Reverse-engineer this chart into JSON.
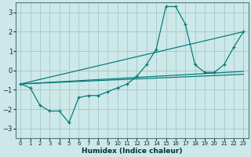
{
  "xlabel": "Humidex (Indice chaleur)",
  "bg_color": "#cce8e8",
  "grid_color": "#aacccc",
  "line_color": "#007777",
  "xlim": [
    -0.5,
    23.5
  ],
  "ylim": [
    -3.5,
    3.5
  ],
  "yticks": [
    -3,
    -2,
    -1,
    0,
    1,
    2,
    3
  ],
  "xticks": [
    0,
    1,
    2,
    3,
    4,
    5,
    6,
    7,
    8,
    9,
    10,
    11,
    12,
    13,
    14,
    15,
    16,
    17,
    18,
    19,
    20,
    21,
    22,
    23
  ],
  "wiggly_x": [
    0,
    1,
    2,
    3,
    4,
    5,
    6,
    7,
    8,
    9,
    10,
    11,
    12,
    13,
    14,
    15,
    16,
    17,
    18,
    19,
    20,
    21,
    22,
    23
  ],
  "wiggly_y": [
    -0.7,
    -0.9,
    -1.8,
    -2.1,
    -2.1,
    -2.7,
    -1.4,
    -1.3,
    -1.3,
    -1.1,
    -0.9,
    -0.7,
    -0.3,
    0.3,
    1.1,
    3.3,
    3.3,
    2.4,
    0.3,
    -0.1,
    -0.1,
    0.3,
    1.2,
    2.0
  ],
  "straight_lines": [
    {
      "x0": 0,
      "y0": -0.7,
      "x1": 23,
      "y1": 2.0
    },
    {
      "x0": 0,
      "y0": -0.7,
      "x1": 23,
      "y1": -0.05
    },
    {
      "x0": 0,
      "y0": -0.7,
      "x1": 23,
      "y1": -0.2
    }
  ]
}
